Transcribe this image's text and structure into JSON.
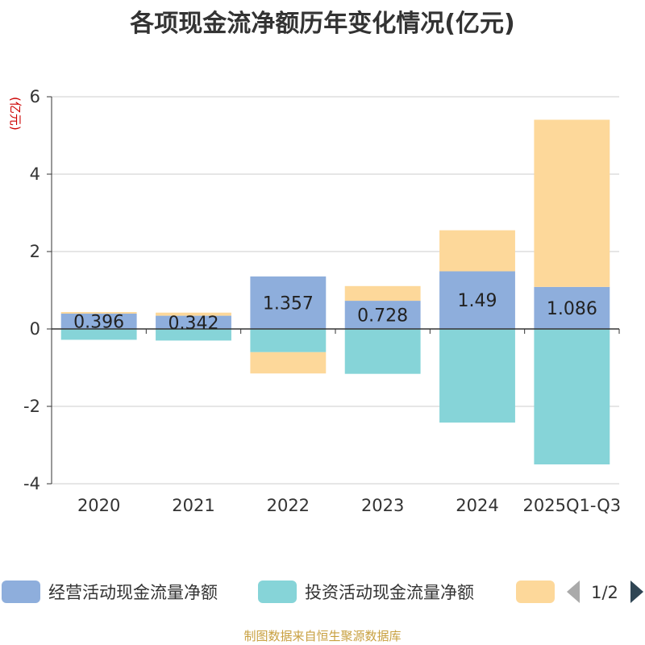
{
  "chart_data": {
    "type": "bar",
    "stacked": true,
    "title": "各项现金流净额历年变化情况(亿元)",
    "ylabel": "(亿元)",
    "ylim": [
      -4,
      6
    ],
    "yticks": [
      6,
      4,
      2,
      0,
      -2,
      -4
    ],
    "categories": [
      "2020",
      "2021",
      "2022",
      "2023",
      "2024",
      "2025Q1-Q3"
    ],
    "series": [
      {
        "name": "经营活动现金流量净额",
        "color": "#8eaedc",
        "values": [
          0.396,
          0.342,
          1.357,
          0.728,
          1.49,
          1.086
        ],
        "show_labels": true
      },
      {
        "name": "投资活动现金流量净额",
        "color": "#86d4d8",
        "values": [
          -0.28,
          -0.3,
          -0.6,
          -1.16,
          -2.42,
          -3.5
        ],
        "show_labels": false
      },
      {
        "name": "",
        "color": "#fdd89a",
        "values": [
          0.04,
          0.08,
          -0.55,
          0.38,
          1.06,
          4.32
        ],
        "show_labels": false
      }
    ],
    "legend": {
      "page": "1/2",
      "position": "bottom"
    }
  },
  "source": "制图数据来自恒生聚源数据库"
}
